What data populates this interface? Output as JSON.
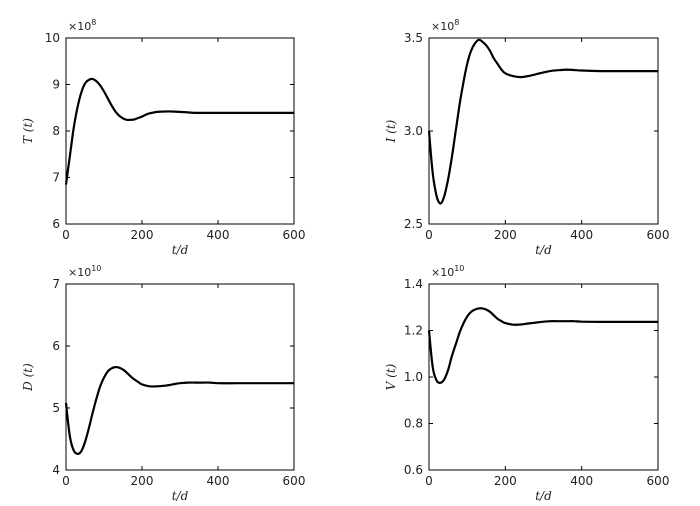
{
  "chart_data": [
    {
      "type": "line",
      "xlabel": "t/d",
      "ylabel": "T (t)",
      "scale_note": "×10^8",
      "scale_base": "×10",
      "scale_exp": "8",
      "xlim": [
        0,
        600
      ],
      "ylim": [
        6,
        10
      ],
      "xticks": [
        0,
        200,
        400,
        600
      ],
      "xtick_labels": [
        "0",
        "200",
        "400",
        "600"
      ],
      "yticks": [
        6,
        7,
        8,
        9,
        10
      ],
      "ytick_labels": [
        "6",
        "7",
        "8",
        "9",
        "10"
      ],
      "grid": false,
      "series": [
        {
          "x": [
            0,
            10,
            20,
            30,
            40,
            50,
            60,
            70,
            80,
            90,
            100,
            110,
            120,
            130,
            140,
            150,
            160,
            170,
            180,
            190,
            200,
            210,
            220,
            240,
            260,
            280,
            300,
            320,
            340,
            360,
            380,
            400,
            420,
            450,
            500,
            550,
            600
          ],
          "y": [
            6.85,
            7.45,
            8.05,
            8.5,
            8.82,
            9.02,
            9.1,
            9.12,
            9.07,
            8.98,
            8.85,
            8.7,
            8.55,
            8.42,
            8.33,
            8.27,
            8.24,
            8.24,
            8.25,
            8.28,
            8.31,
            8.35,
            8.38,
            8.41,
            8.42,
            8.42,
            8.41,
            8.4,
            8.39,
            8.39,
            8.39,
            8.39,
            8.39,
            8.39,
            8.39,
            8.39,
            8.39
          ]
        }
      ]
    },
    {
      "type": "line",
      "xlabel": "t/d",
      "ylabel": "I (t)",
      "scale_note": "×10^8",
      "scale_base": "×10",
      "scale_exp": "8",
      "xlim": [
        0,
        600
      ],
      "ylim": [
        2.5,
        3.5
      ],
      "xticks": [
        0,
        200,
        400,
        600
      ],
      "xtick_labels": [
        "0",
        "200",
        "400",
        "600"
      ],
      "yticks": [
        2.5,
        3.0,
        3.5
      ],
      "ytick_labels": [
        "2.5",
        "3.0",
        "3.5"
      ],
      "grid": false,
      "series": [
        {
          "x": [
            0,
            10,
            20,
            30,
            40,
            50,
            60,
            70,
            80,
            90,
            100,
            110,
            120,
            130,
            140,
            150,
            160,
            170,
            180,
            190,
            200,
            220,
            240,
            260,
            280,
            300,
            320,
            340,
            360,
            380,
            400,
            450,
            500,
            550,
            600
          ],
          "y": [
            3.0,
            2.77,
            2.65,
            2.61,
            2.65,
            2.74,
            2.86,
            3.0,
            3.14,
            3.26,
            3.36,
            3.43,
            3.47,
            3.49,
            3.48,
            3.46,
            3.43,
            3.39,
            3.36,
            3.33,
            3.31,
            3.295,
            3.29,
            3.295,
            3.305,
            3.315,
            3.323,
            3.327,
            3.33,
            3.328,
            3.325,
            3.322,
            3.322,
            3.322,
            3.322
          ]
        }
      ]
    },
    {
      "type": "line",
      "xlabel": "t/d",
      "ylabel": "D (t)",
      "scale_note": "×10^10",
      "scale_base": "×10",
      "scale_exp": "10",
      "xlim": [
        0,
        600
      ],
      "ylim": [
        4,
        7
      ],
      "xticks": [
        0,
        200,
        400,
        600
      ],
      "xtick_labels": [
        "0",
        "200",
        "400",
        "600"
      ],
      "yticks": [
        4,
        5,
        6,
        7
      ],
      "ytick_labels": [
        "4",
        "5",
        "6",
        "7"
      ],
      "grid": false,
      "series": [
        {
          "x": [
            0,
            10,
            20,
            30,
            40,
            50,
            60,
            70,
            80,
            90,
            100,
            110,
            120,
            130,
            140,
            150,
            160,
            170,
            180,
            190,
            200,
            220,
            240,
            260,
            280,
            300,
            320,
            340,
            360,
            380,
            400,
            450,
            500,
            550,
            600
          ],
          "y": [
            5.08,
            4.55,
            4.32,
            4.26,
            4.3,
            4.45,
            4.67,
            4.92,
            5.15,
            5.35,
            5.49,
            5.59,
            5.64,
            5.66,
            5.65,
            5.62,
            5.57,
            5.51,
            5.46,
            5.42,
            5.38,
            5.35,
            5.35,
            5.36,
            5.38,
            5.4,
            5.41,
            5.41,
            5.41,
            5.41,
            5.4,
            5.4,
            5.4,
            5.4,
            5.4
          ]
        }
      ]
    },
    {
      "type": "line",
      "xlabel": "t/d",
      "ylabel": "V (t)",
      "scale_note": "×10^10",
      "scale_base": "×10",
      "scale_exp": "10",
      "xlim": [
        0,
        600
      ],
      "ylim": [
        0.6,
        1.4
      ],
      "xticks": [
        0,
        200,
        400,
        600
      ],
      "xtick_labels": [
        "0",
        "200",
        "400",
        "600"
      ],
      "yticks": [
        0.6,
        0.8,
        1.0,
        1.2,
        1.4
      ],
      "ytick_labels": [
        "0.6",
        "0.8",
        "1.0",
        "1.2",
        "1.4"
      ],
      "grid": false,
      "series": [
        {
          "x": [
            0,
            10,
            20,
            30,
            40,
            50,
            60,
            70,
            80,
            90,
            100,
            110,
            120,
            130,
            140,
            150,
            160,
            170,
            180,
            190,
            200,
            220,
            240,
            260,
            280,
            300,
            320,
            340,
            360,
            380,
            400,
            450,
            500,
            550,
            600
          ],
          "y": [
            1.2,
            1.04,
            0.985,
            0.975,
            0.99,
            1.03,
            1.09,
            1.14,
            1.19,
            1.23,
            1.26,
            1.28,
            1.29,
            1.295,
            1.295,
            1.29,
            1.28,
            1.265,
            1.25,
            1.24,
            1.232,
            1.225,
            1.226,
            1.23,
            1.234,
            1.238,
            1.24,
            1.24,
            1.24,
            1.24,
            1.238,
            1.237,
            1.237,
            1.237,
            1.237
          ]
        }
      ]
    }
  ]
}
